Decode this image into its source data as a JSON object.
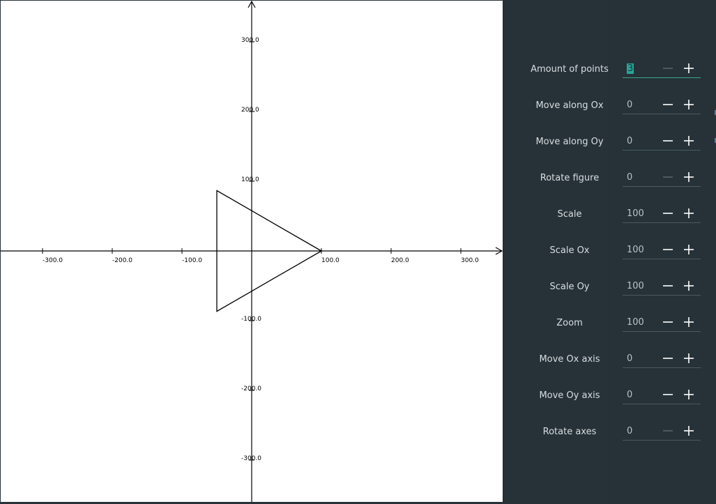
{
  "plot": {
    "type": "scatter",
    "x_ticks": [
      "-300.0",
      "-200.0",
      "-100.0",
      "100.0",
      "200.0",
      "300.0"
    ],
    "y_ticks": [
      "300.0",
      "200.0",
      "100.0",
      "-100.0",
      "-200.0",
      "-300.0"
    ],
    "figure_points": [
      [
        100,
        0
      ],
      [
        -50,
        86.6
      ],
      [
        -50,
        -86.6
      ]
    ]
  },
  "controls": [
    {
      "label": "Amount of points",
      "value": "3",
      "minus_disabled": true
    },
    {
      "label": "Move along Ox",
      "value": "0",
      "minus_disabled": false
    },
    {
      "label": "Move along Oy",
      "value": "0",
      "minus_disabled": false
    },
    {
      "label": "Rotate figure",
      "value": "0",
      "minus_disabled": true
    },
    {
      "label": "Scale",
      "value": "100",
      "minus_disabled": false
    },
    {
      "label": "Scale Ox",
      "value": "100",
      "minus_disabled": false
    },
    {
      "label": "Scale Oy",
      "value": "100",
      "minus_disabled": false
    },
    {
      "label": "Zoom",
      "value": "100",
      "minus_disabled": false
    },
    {
      "label": "Move Ox axis",
      "value": "0",
      "minus_disabled": false
    },
    {
      "label": "Move Oy axis",
      "value": "0",
      "minus_disabled": false
    },
    {
      "label": "Rotate axes",
      "value": "0",
      "minus_disabled": true
    }
  ],
  "colors": {
    "panel_bg": "#263238",
    "accent": "#26a69a",
    "text": "#d9dee1",
    "button_enabled": "#ffffff",
    "button_disabled": "#55646b"
  },
  "icons": {
    "minus": "minus-icon",
    "plus": "plus-icon"
  }
}
